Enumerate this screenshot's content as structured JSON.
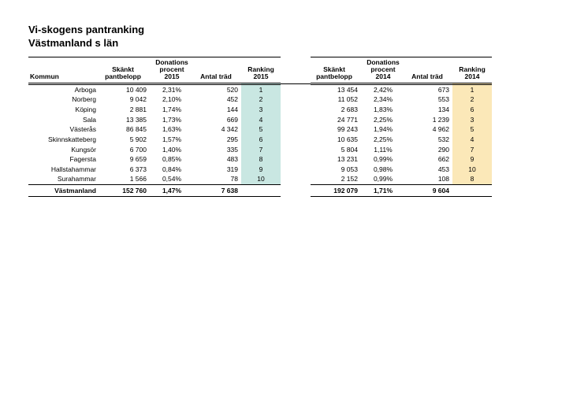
{
  "title_line1": "Vi-skogens pantranking",
  "title_line2": "Västmanland s län",
  "headers": {
    "kommun": "Kommun",
    "pant_l1": "Skänkt",
    "pant_l2": "pantbelopp",
    "proc_l1": "Donations",
    "proc_l2": "procent",
    "proc15_l3": "2015",
    "proc14_l3": "2014",
    "trad": "Antal träd",
    "rank_l1": "Ranking",
    "rank15_l2": "2015",
    "rank14_l2": "2014"
  },
  "rows": [
    {
      "k": "Arboga",
      "p15": "10 409",
      "pr15": "2,31%",
      "t15": "520",
      "r15": "1",
      "p14": "13 454",
      "pr14": "2,42%",
      "t14": "673",
      "r14": "1"
    },
    {
      "k": "Norberg",
      "p15": "9 042",
      "pr15": "2,10%",
      "t15": "452",
      "r15": "2",
      "p14": "11 052",
      "pr14": "2,34%",
      "t14": "553",
      "r14": "2"
    },
    {
      "k": "Köping",
      "p15": "2 881",
      "pr15": "1,74%",
      "t15": "144",
      "r15": "3",
      "p14": "2 683",
      "pr14": "1,83%",
      "t14": "134",
      "r14": "6"
    },
    {
      "k": "Sala",
      "p15": "13 385",
      "pr15": "1,73%",
      "t15": "669",
      "r15": "4",
      "p14": "24 771",
      "pr14": "2,25%",
      "t14": "1 239",
      "r14": "3"
    },
    {
      "k": "Västerås",
      "p15": "86 845",
      "pr15": "1,63%",
      "t15": "4 342",
      "r15": "5",
      "p14": "99 243",
      "pr14": "1,94%",
      "t14": "4 962",
      "r14": "5"
    },
    {
      "k": "Skinnskatteberg",
      "p15": "5 902",
      "pr15": "1,57%",
      "t15": "295",
      "r15": "6",
      "p14": "10 635",
      "pr14": "2,25%",
      "t14": "532",
      "r14": "4"
    },
    {
      "k": "Kungsör",
      "p15": "6 700",
      "pr15": "1,40%",
      "t15": "335",
      "r15": "7",
      "p14": "5 804",
      "pr14": "1,11%",
      "t14": "290",
      "r14": "7"
    },
    {
      "k": "Fagersta",
      "p15": "9 659",
      "pr15": "0,85%",
      "t15": "483",
      "r15": "8",
      "p14": "13 231",
      "pr14": "0,99%",
      "t14": "662",
      "r14": "9"
    },
    {
      "k": "Hallstahammar",
      "p15": "6 373",
      "pr15": "0,84%",
      "t15": "319",
      "r15": "9",
      "p14": "9 053",
      "pr14": "0,98%",
      "t14": "453",
      "r14": "10"
    },
    {
      "k": "Surahammar",
      "p15": "1 566",
      "pr15": "0,54%",
      "t15": "78",
      "r15": "10",
      "p14": "2 152",
      "pr14": "0,99%",
      "t14": "108",
      "r14": "8"
    }
  ],
  "total": {
    "k": "Västmanland",
    "p15": "152 760",
    "pr15": "1,47%",
    "t15": "7 638",
    "p14": "192 079",
    "pr14": "1,71%",
    "t14": "9 604"
  },
  "colors": {
    "hl_green": "#c9e7e2",
    "hl_yellow": "#fbe8b8",
    "background": "#ffffff",
    "text": "#000000"
  },
  "table_style": {
    "type": "table",
    "font_family": "Arial",
    "body_fontsize_pt": 6.5,
    "title_fontsize_pt": 10,
    "title_fontweight": "bold",
    "header_fontweight": "bold",
    "total_fontweight": "bold",
    "rule_color": "#000000",
    "header_top_rule": "single",
    "header_bottom_rule": "double",
    "total_top_rule": "single",
    "total_bottom_rule": "single"
  }
}
